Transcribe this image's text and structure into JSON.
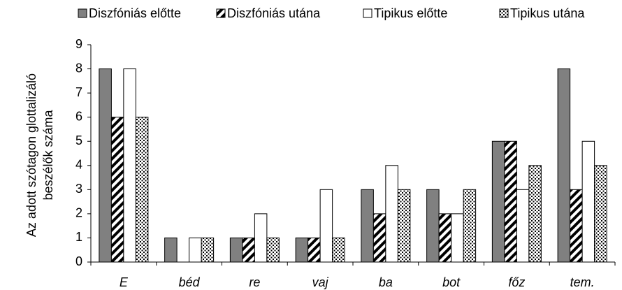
{
  "chart_data": {
    "type": "bar",
    "y_label_lines": [
      "Az adott szótagon glottalizáló",
      "beszélők száma"
    ],
    "categories": [
      "E",
      "béd",
      "re",
      "vaj",
      "ba",
      "bot",
      "főz",
      "tem."
    ],
    "series": [
      {
        "name": "Diszfóniás előtte",
        "color": "#808080",
        "pattern": "solid",
        "values": [
          8,
          1,
          1,
          1,
          3,
          3,
          5,
          8
        ]
      },
      {
        "name": "Diszfóniás utána",
        "color": "#ffffff",
        "pattern": "hatch",
        "values": [
          6,
          0,
          1,
          1,
          2,
          2,
          5,
          3
        ]
      },
      {
        "name": "Tipikus előtte",
        "color": "#ffffff",
        "pattern": "solid",
        "values": [
          8,
          1,
          2,
          3,
          4,
          2,
          3,
          5
        ]
      },
      {
        "name": "Tipikus utána",
        "color": "#ffffff",
        "pattern": "dots",
        "values": [
          6,
          1,
          1,
          1,
          3,
          3,
          4,
          4
        ]
      }
    ],
    "ylim": [
      0,
      9
    ],
    "yticks": [
      0,
      1,
      2,
      3,
      4,
      5,
      6,
      7,
      8,
      9
    ],
    "grid": false,
    "legend": "top"
  }
}
